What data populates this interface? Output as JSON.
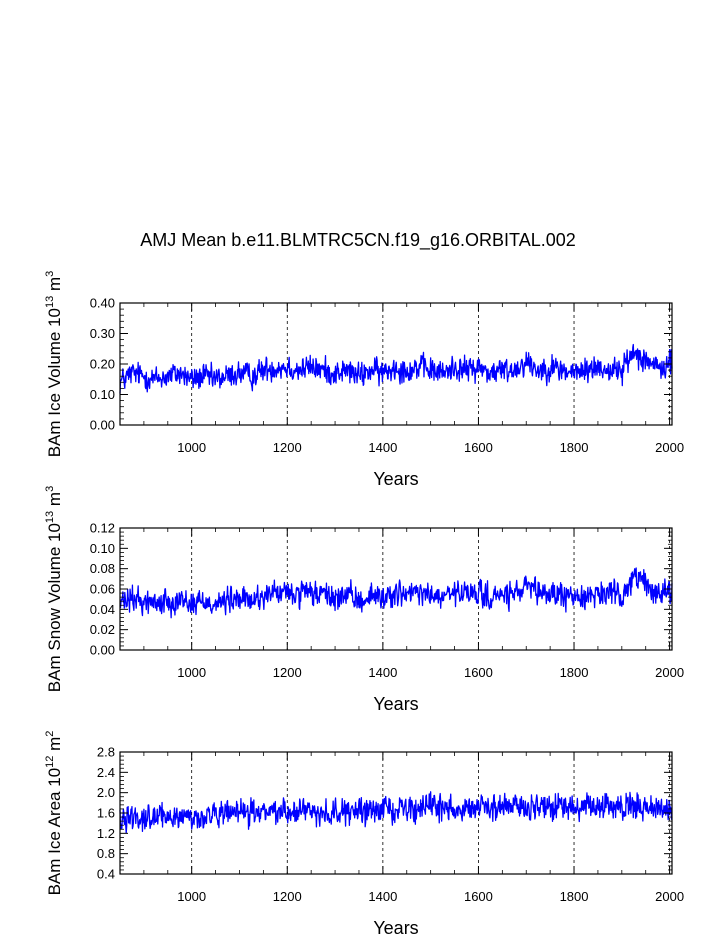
{
  "title": "AMJ Mean b.e11.BLMTRC5CN.f19_g16.ORBITAL.002",
  "colors": {
    "series": "#0000ff",
    "axis": "#000000",
    "grid": "#000000",
    "background": "#ffffff"
  },
  "chart_data": [
    {
      "type": "line",
      "name": "ice-volume",
      "ylabel": {
        "text": "BAm Ice Volume 10",
        "sup1": "13",
        "mid": " m",
        "sup2": "3"
      },
      "xlabel": "Years",
      "xlim": [
        850,
        2005
      ],
      "ylim": [
        0.0,
        0.4
      ],
      "xticks": [
        1000,
        1200,
        1400,
        1600,
        1800,
        2000
      ],
      "xtick_labels": [
        "1000",
        "1200",
        "1400",
        "1600",
        "1800",
        "2000"
      ],
      "yticks": [
        0.0,
        0.1,
        0.2,
        0.3,
        0.4
      ],
      "ytick_labels": [
        "0.00",
        "0.10",
        "0.20",
        "0.30",
        "0.40"
      ],
      "grid_x": [
        1000,
        1200,
        1400,
        1600,
        1800,
        2000
      ],
      "series": {
        "name": "BAm Ice Volume",
        "x": [
          850,
          875,
          900,
          925,
          950,
          975,
          1000,
          1025,
          1050,
          1075,
          1100,
          1125,
          1150,
          1175,
          1200,
          1225,
          1250,
          1275,
          1300,
          1325,
          1350,
          1375,
          1400,
          1425,
          1450,
          1475,
          1500,
          1525,
          1550,
          1575,
          1600,
          1625,
          1650,
          1675,
          1700,
          1725,
          1750,
          1775,
          1800,
          1825,
          1850,
          1875,
          1900,
          1925,
          1950,
          1975,
          2000,
          2005
        ],
        "values": [
          0.14,
          0.17,
          0.16,
          0.15,
          0.16,
          0.17,
          0.15,
          0.16,
          0.15,
          0.16,
          0.17,
          0.16,
          0.18,
          0.19,
          0.19,
          0.18,
          0.19,
          0.18,
          0.17,
          0.18,
          0.16,
          0.18,
          0.17,
          0.19,
          0.18,
          0.19,
          0.18,
          0.17,
          0.19,
          0.18,
          0.19,
          0.17,
          0.18,
          0.18,
          0.21,
          0.18,
          0.19,
          0.18,
          0.17,
          0.18,
          0.19,
          0.18,
          0.18,
          0.24,
          0.22,
          0.18,
          0.2,
          0.21
        ]
      }
    },
    {
      "type": "line",
      "name": "snow-volume",
      "ylabel": {
        "text": "BAm Snow Volume 10",
        "sup1": "13",
        "mid": " m",
        "sup2": "3"
      },
      "xlabel": "Years",
      "xlim": [
        850,
        2005
      ],
      "ylim": [
        0.0,
        0.12
      ],
      "xticks": [
        1000,
        1200,
        1400,
        1600,
        1800,
        2000
      ],
      "xtick_labels": [
        "1000",
        "1200",
        "1400",
        "1600",
        "1800",
        "2000"
      ],
      "yticks": [
        0.0,
        0.02,
        0.04,
        0.06,
        0.08,
        0.1,
        0.12
      ],
      "ytick_labels": [
        "0.00",
        "0.02",
        "0.04",
        "0.06",
        "0.08",
        "0.10",
        "0.12"
      ],
      "grid_x": [
        1000,
        1200,
        1400,
        1600,
        1800,
        2000
      ],
      "series": {
        "name": "BAm Snow Volume",
        "x": [
          850,
          875,
          900,
          925,
          950,
          975,
          1000,
          1025,
          1050,
          1075,
          1100,
          1125,
          1150,
          1175,
          1200,
          1225,
          1250,
          1275,
          1300,
          1325,
          1350,
          1375,
          1400,
          1425,
          1450,
          1475,
          1500,
          1525,
          1550,
          1575,
          1600,
          1625,
          1650,
          1675,
          1700,
          1725,
          1750,
          1775,
          1800,
          1825,
          1850,
          1875,
          1900,
          1925,
          1950,
          1975,
          2000,
          2005
        ],
        "values": [
          0.045,
          0.05,
          0.048,
          0.046,
          0.048,
          0.05,
          0.046,
          0.048,
          0.046,
          0.048,
          0.05,
          0.048,
          0.054,
          0.056,
          0.056,
          0.054,
          0.056,
          0.054,
          0.051,
          0.054,
          0.048,
          0.054,
          0.051,
          0.056,
          0.054,
          0.056,
          0.054,
          0.051,
          0.056,
          0.054,
          0.056,
          0.051,
          0.054,
          0.054,
          0.062,
          0.054,
          0.056,
          0.054,
          0.051,
          0.054,
          0.056,
          0.054,
          0.054,
          0.072,
          0.066,
          0.054,
          0.06,
          0.062
        ]
      }
    },
    {
      "type": "line",
      "name": "ice-area",
      "ylabel": {
        "text": "BAm Ice Area 10",
        "sup1": "12",
        "mid": " m",
        "sup2": "2"
      },
      "xlabel": "Years",
      "xlim": [
        850,
        2005
      ],
      "ylim": [
        0.4,
        2.8
      ],
      "xticks": [
        1000,
        1200,
        1400,
        1600,
        1800,
        2000
      ],
      "xtick_labels": [
        "1000",
        "1200",
        "1400",
        "1600",
        "1800",
        "2000"
      ],
      "yticks": [
        0.4,
        0.8,
        1.2,
        1.6,
        2.0,
        2.4,
        2.8
      ],
      "ytick_labels": [
        "0.4",
        "0.8",
        "1.2",
        "1.6",
        "2.0",
        "2.4",
        "2.8"
      ],
      "grid_x": [
        1000,
        1200,
        1400,
        1600,
        1800,
        2000
      ],
      "series": {
        "name": "BAm Ice Area",
        "x": [
          850,
          875,
          900,
          925,
          950,
          975,
          1000,
          1025,
          1050,
          1075,
          1100,
          1125,
          1150,
          1175,
          1200,
          1225,
          1250,
          1275,
          1300,
          1325,
          1350,
          1375,
          1400,
          1425,
          1450,
          1475,
          1500,
          1525,
          1550,
          1575,
          1600,
          1625,
          1650,
          1675,
          1700,
          1725,
          1750,
          1775,
          1800,
          1825,
          1850,
          1875,
          1900,
          1925,
          1950,
          1975,
          2000,
          2005
        ],
        "values": [
          1.5,
          1.55,
          1.52,
          1.5,
          1.52,
          1.55,
          1.5,
          1.52,
          1.55,
          1.57,
          1.6,
          1.6,
          1.62,
          1.64,
          1.65,
          1.63,
          1.65,
          1.62,
          1.6,
          1.62,
          1.6,
          1.65,
          1.68,
          1.7,
          1.68,
          1.7,
          1.72,
          1.7,
          1.72,
          1.7,
          1.72,
          1.68,
          1.7,
          1.72,
          1.75,
          1.7,
          1.72,
          1.72,
          1.68,
          1.7,
          1.72,
          1.7,
          1.7,
          1.75,
          1.72,
          1.68,
          1.65,
          1.6
        ]
      }
    }
  ]
}
